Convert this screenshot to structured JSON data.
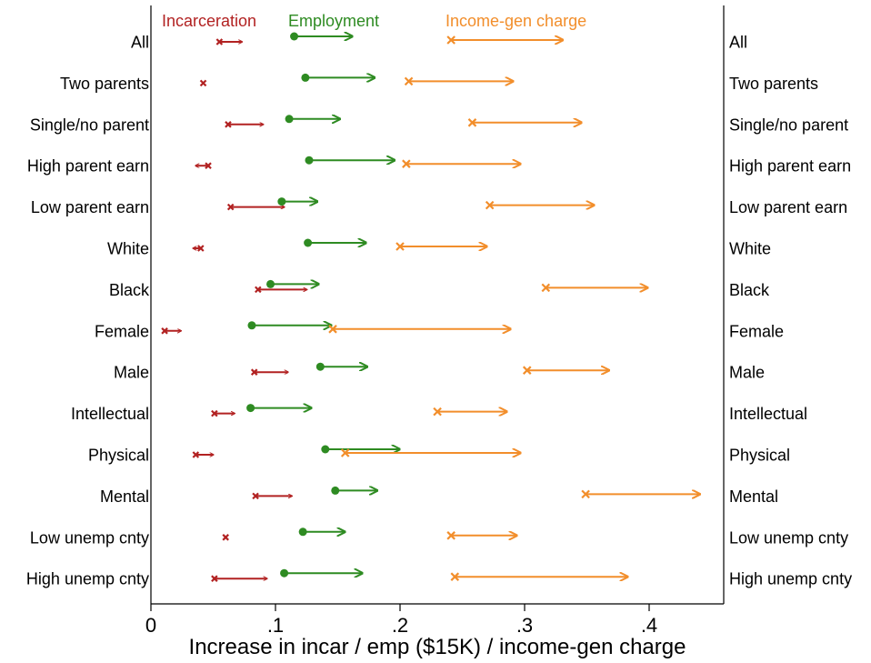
{
  "chart_data": {
    "type": "scatter",
    "title": "",
    "xlabel": "Increase in incar / emp ($15K) / income-gen charge",
    "ylabel": "",
    "xlim": [
      0,
      0.46
    ],
    "x_ticks": [
      {
        "value": 0,
        "label": "0"
      },
      {
        "value": 0.1,
        "label": ".1"
      },
      {
        "value": 0.2,
        "label": ".2"
      },
      {
        "value": 0.3,
        "label": ".3"
      },
      {
        "value": 0.4,
        "label": ".4"
      }
    ],
    "grid": false,
    "legend_position": "top",
    "categories": [
      "All",
      "Two parents",
      "Single/no parent",
      "High parent earn",
      "Low parent earn",
      "White",
      "Black",
      "Female",
      "Male",
      "Intellectual",
      "Physical",
      "Mental",
      "Low unemp cnty",
      "High unemp cnty"
    ],
    "series": [
      {
        "name": "Incarceration",
        "color": "#b22222",
        "start_marker": "x",
        "start": [
          0.055,
          0.042,
          0.062,
          0.046,
          0.064,
          0.04,
          0.086,
          0.011,
          0.083,
          0.051,
          0.036,
          0.084,
          0.06,
          0.051
        ],
        "end": [
          0.073,
          0.042,
          0.09,
          0.036,
          0.107,
          0.034,
          0.125,
          0.024,
          0.11,
          0.067,
          0.05,
          0.113,
          0.06,
          0.093
        ]
      },
      {
        "name": "Employment",
        "color": "#2e8b22",
        "start_marker": "dot",
        "start": [
          0.115,
          0.124,
          0.111,
          0.127,
          0.105,
          0.126,
          0.096,
          0.081,
          0.136,
          0.08,
          0.14,
          0.148,
          0.122,
          0.107
        ],
        "end": [
          0.161,
          0.179,
          0.151,
          0.195,
          0.133,
          0.172,
          0.134,
          0.144,
          0.173,
          0.128,
          0.199,
          0.181,
          0.155,
          0.169
        ]
      },
      {
        "name": "Income-gen charge",
        "color": "#f28e2b",
        "start_marker": "x",
        "start": [
          0.241,
          0.207,
          0.258,
          0.205,
          0.272,
          0.2,
          0.317,
          0.146,
          0.302,
          0.23,
          0.156,
          0.349,
          0.241,
          0.244
        ],
        "end": [
          0.33,
          0.29,
          0.345,
          0.296,
          0.355,
          0.269,
          0.398,
          0.288,
          0.367,
          0.285,
          0.296,
          0.44,
          0.293,
          0.382
        ]
      }
    ]
  }
}
